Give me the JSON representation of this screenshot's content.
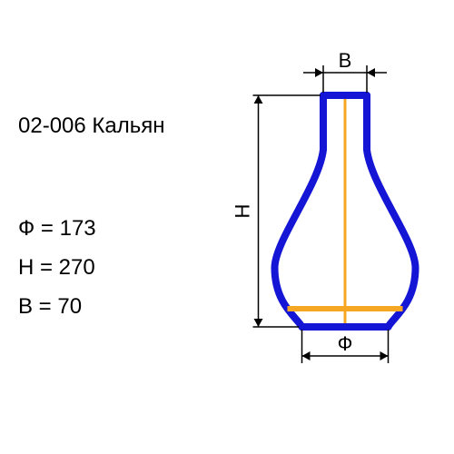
{
  "title": "02-006 Кальян",
  "dimensions": {
    "phi_label": "Ф = 173",
    "h_label": "H = 270",
    "b_label": "B = 70"
  },
  "labels": {
    "B": "В",
    "H": "H",
    "Phi": "Ф"
  },
  "colors": {
    "outline": "#1515d6",
    "centerline": "#f5a623",
    "crossbar": "#f5a623",
    "dimension_line": "#000000",
    "text": "#000000",
    "background": "#ffffff"
  },
  "diagram": {
    "type": "engineering-profile",
    "shape": "vase",
    "stroke_width": 8,
    "centerline_width": 3,
    "crossbar_width": 6,
    "neck_width": 48,
    "body_max_width": 155,
    "total_height": 255,
    "font_size_labels": 22,
    "arrow_size": 9
  }
}
